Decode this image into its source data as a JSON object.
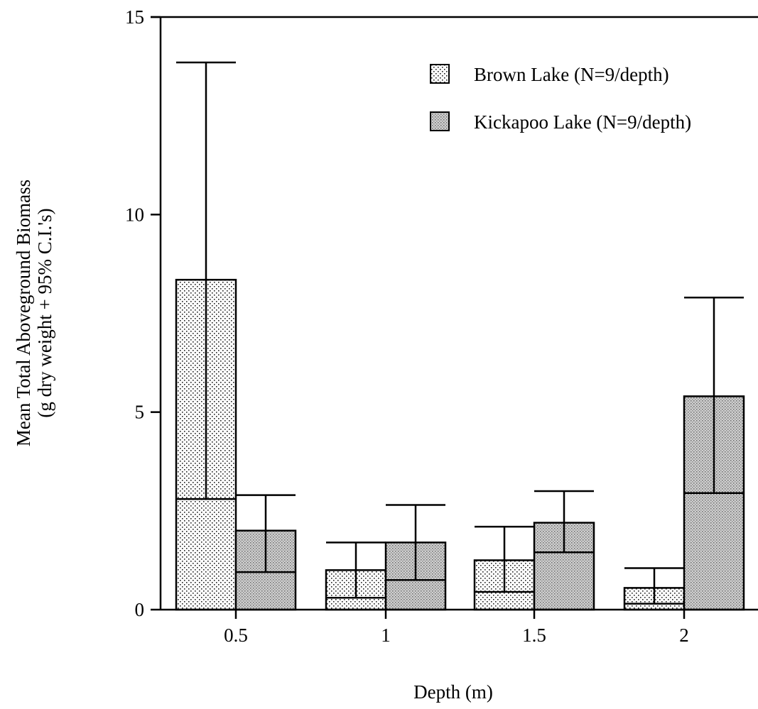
{
  "chart_data": {
    "type": "bar",
    "categories": [
      "0.5",
      "1",
      "1.5",
      "2"
    ],
    "xlabel": "Depth (m)",
    "ylabel_lines": [
      "Mean Total Aboveground Biomass",
      "(g dry weight + 95% C.I.'s)"
    ],
    "ylim": [
      0,
      15
    ],
    "yticks": [
      "0",
      "5",
      "10",
      "15"
    ],
    "grid": false,
    "legend_position": "top-right",
    "series": [
      {
        "name": "Brown Lake (N=9/depth)",
        "pattern": "fine-dots",
        "values": [
          8.35,
          1.0,
          1.25,
          0.55
        ],
        "ci_lower": [
          2.8,
          0.3,
          0.45,
          0.15
        ],
        "ci_upper": [
          13.85,
          1.7,
          2.1,
          1.05
        ]
      },
      {
        "name": "Kickapoo Lake (N=9/depth)",
        "pattern": "dense-gray",
        "values": [
          2.0,
          1.7,
          2.2,
          5.4
        ],
        "ci_lower": [
          0.95,
          0.75,
          1.45,
          2.95
        ],
        "ci_upper": [
          2.9,
          2.65,
          3.0,
          7.9
        ]
      }
    ]
  }
}
